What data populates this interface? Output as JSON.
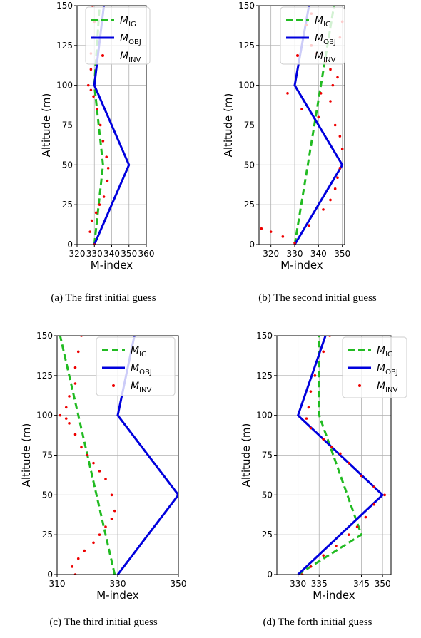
{
  "colors": {
    "ig": "#22bb22",
    "obj": "#0000dd",
    "inv": "#ee0000",
    "grid": "#b0b0b0"
  },
  "legend": {
    "ig_main": "M",
    "ig_sub": "IG",
    "obj_main": "M",
    "obj_sub": "OBJ",
    "inv_main": "M",
    "inv_sub": "INV"
  },
  "chart_data": [
    {
      "panel": "a",
      "type": "line",
      "caption": "(a) The first initial guess",
      "xlabel": "M-index",
      "ylabel": "Altitude (m)",
      "xlim": [
        320,
        360
      ],
      "ylim": [
        0,
        150
      ],
      "xticks": [
        320,
        330,
        340,
        350,
        360
      ],
      "yticks": [
        0,
        25,
        50,
        75,
        100,
        125,
        150
      ],
      "grid": true,
      "legend_loc": "upper right",
      "series": [
        {
          "name": "M_IG",
          "style": "dashed",
          "x": [
            330,
            335,
            330,
            333
          ],
          "y": [
            0,
            50,
            100,
            150
          ]
        },
        {
          "name": "M_OBJ",
          "style": "solid",
          "x": [
            330,
            350,
            330,
            335.5
          ],
          "y": [
            0,
            50,
            100,
            150
          ]
        },
        {
          "name": "M_INV",
          "style": "points",
          "x": [
            330.0,
            327.5,
            328.5,
            331.0,
            333.0,
            335.5,
            337.5,
            338.0,
            337.0,
            335.0,
            333.5,
            331.5,
            329.5,
            328.0,
            326.5,
            328.0,
            328.0,
            329.5,
            330.0,
            329.0
          ],
          "y": [
            0,
            8,
            15,
            20,
            25,
            30,
            40,
            48,
            55,
            65,
            75,
            85,
            93,
            97,
            100,
            110,
            120,
            130,
            140,
            150
          ]
        }
      ]
    },
    {
      "panel": "b",
      "type": "line",
      "caption": "(b) The second initial guess",
      "xlabel": "M-index",
      "ylabel": "Altitude (m)",
      "xlim": [
        315,
        351
      ],
      "ylim": [
        0,
        150
      ],
      "xticks": [
        320,
        330,
        340,
        350
      ],
      "yticks": [
        0,
        25,
        50,
        75,
        100,
        125,
        150
      ],
      "grid": true,
      "legend_loc": "upper left",
      "series": [
        {
          "name": "M_IG",
          "style": "dashed",
          "x": [
            330,
            346.5
          ],
          "y": [
            0,
            150
          ]
        },
        {
          "name": "M_OBJ",
          "style": "solid",
          "x": [
            330,
            350,
            330,
            336
          ],
          "y": [
            0,
            50,
            100,
            150
          ]
        },
        {
          "name": "M_INV",
          "style": "points",
          "x": [
            330,
            316,
            320,
            325,
            336,
            342,
            345,
            347,
            348,
            349,
            350,
            349,
            347,
            340,
            333,
            327,
            345,
            341,
            348,
            345,
            343,
            339,
            337,
            349,
            350,
            337,
            335,
            346
          ],
          "y": [
            1,
            10,
            8,
            5,
            12,
            22,
            28,
            35,
            42,
            48,
            60,
            68,
            75,
            80,
            85,
            95,
            90,
            95,
            105,
            110,
            115,
            120,
            125,
            130,
            140,
            145,
            138,
            100
          ]
        }
      ]
    },
    {
      "panel": "c",
      "type": "line",
      "caption": "(c) The third initial guess",
      "xlabel": "M-index",
      "ylabel": "Altitude (m)",
      "xlim": [
        310,
        350
      ],
      "ylim": [
        0,
        150
      ],
      "xticks": [
        310,
        330,
        350
      ],
      "yticks": [
        0,
        25,
        50,
        75,
        100,
        125,
        150
      ],
      "grid": true,
      "legend_loc": "upper right",
      "series": [
        {
          "name": "M_IG",
          "style": "dashed",
          "x": [
            329,
            311
          ],
          "y": [
            0,
            150
          ]
        },
        {
          "name": "M_OBJ",
          "style": "solid",
          "x": [
            330,
            350,
            330,
            335.5
          ],
          "y": [
            0,
            50,
            100,
            150
          ]
        },
        {
          "name": "M_INV",
          "style": "points",
          "x": [
            316,
            315,
            317,
            319,
            322,
            324,
            326,
            328,
            329,
            328,
            326,
            324,
            322,
            320,
            318,
            316,
            314,
            313,
            311,
            313,
            314,
            316,
            316,
            317,
            318
          ],
          "y": [
            0,
            5,
            10,
            15,
            20,
            25,
            30,
            35,
            40,
            50,
            60,
            65,
            70,
            75,
            80,
            88,
            95,
            98,
            100,
            105,
            112,
            120,
            130,
            140,
            150
          ]
        }
      ]
    },
    {
      "panel": "d",
      "type": "line",
      "caption": "(d) The forth initial guess",
      "xlabel": "M-index",
      "ylabel": "Altitude (m)",
      "xlim": [
        325,
        352
      ],
      "ylim": [
        0,
        150
      ],
      "xticks": [
        330,
        335,
        345,
        350
      ],
      "yticks": [
        0,
        25,
        50,
        75,
        100,
        125,
        150
      ],
      "grid": true,
      "legend_loc": "upper right",
      "series": [
        {
          "name": "M_IG",
          "style": "dashed",
          "x": [
            330,
            345,
            335,
            335
          ],
          "y": [
            0,
            25,
            100,
            150
          ]
        },
        {
          "name": "M_OBJ",
          "style": "solid",
          "x": [
            330,
            350,
            330,
            336.5
          ],
          "y": [
            0,
            50,
            100,
            150
          ]
        },
        {
          "name": "M_INV",
          "style": "points",
          "x": [
            331,
            333,
            336,
            339,
            342,
            344,
            346,
            348,
            350.5,
            348,
            345,
            342,
            340,
            338,
            336,
            333,
            332,
            332.5,
            333,
            334,
            336,
            337.5
          ],
          "y": [
            0,
            5,
            12,
            18,
            25,
            30,
            36,
            44,
            50,
            55,
            62,
            70,
            76,
            80,
            85,
            92,
            98,
            105,
            115,
            125,
            140,
            150
          ]
        }
      ]
    }
  ]
}
